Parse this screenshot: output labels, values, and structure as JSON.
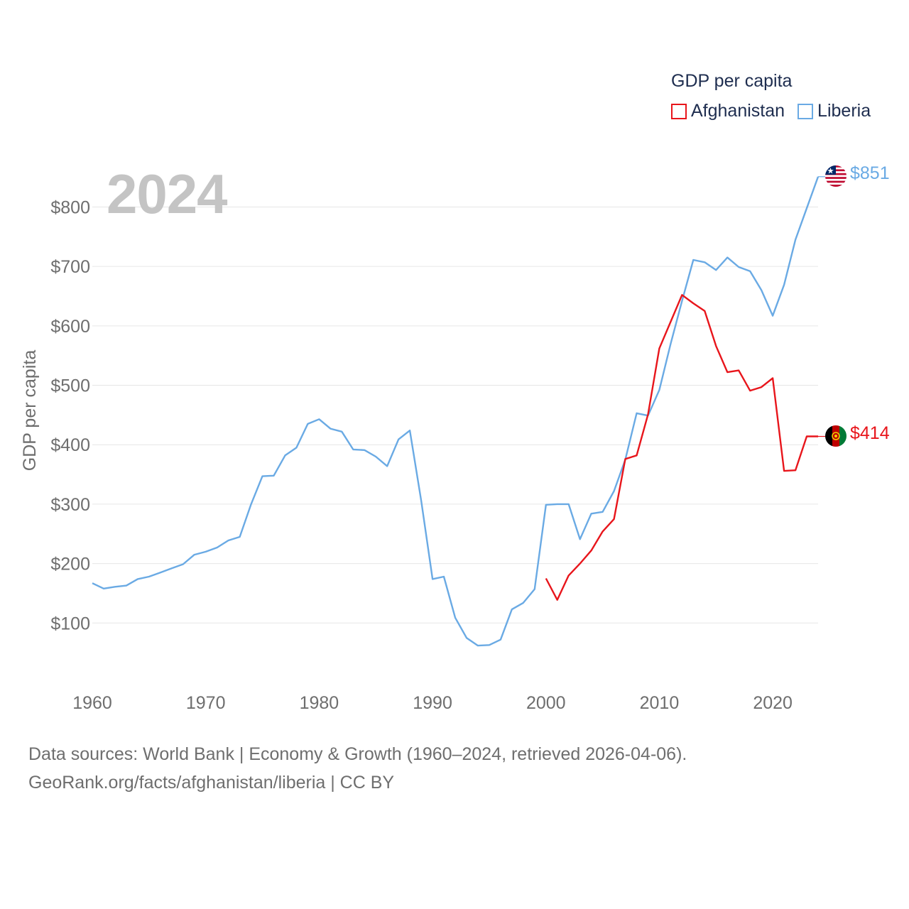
{
  "chart_data": {
    "type": "line",
    "title": "2024",
    "ylabel": "GDP per capita",
    "xlabel": "",
    "xlim": [
      1960,
      2024
    ],
    "ylim": [
      0,
      900
    ],
    "grid": true,
    "yticks": [
      100,
      200,
      300,
      400,
      500,
      600,
      700,
      800
    ],
    "ytick_labels": [
      "$100",
      "$200",
      "$300",
      "$400",
      "$500",
      "$600",
      "$700",
      "$800"
    ],
    "xticks": [
      1960,
      1970,
      1980,
      1990,
      2000,
      2010,
      2020
    ],
    "xtick_labels": [
      "1960",
      "1970",
      "1980",
      "1990",
      "2000",
      "2010",
      "2020"
    ],
    "legend_title": "GDP per capita",
    "series": [
      {
        "name": "Afghanistan",
        "color": "#e8151b",
        "end_label": "$414",
        "x": [
          2000,
          2001,
          2002,
          2003,
          2004,
          2005,
          2006,
          2007,
          2008,
          2009,
          2010,
          2011,
          2012,
          2013,
          2014,
          2015,
          2016,
          2017,
          2018,
          2019,
          2020,
          2021,
          2022,
          2023,
          2024
        ],
        "values": [
          175,
          139,
          180,
          200,
          222,
          254,
          275,
          376,
          382,
          451,
          562,
          607,
          652,
          638,
          625,
          566,
          522,
          525,
          491,
          497,
          512,
          356,
          357,
          414,
          414
        ]
      },
      {
        "name": "Liberia",
        "color": "#6aaae4",
        "end_label": "$851",
        "x": [
          1960,
          1961,
          1962,
          1963,
          1964,
          1965,
          1966,
          1967,
          1968,
          1969,
          1970,
          1971,
          1972,
          1973,
          1974,
          1975,
          1976,
          1977,
          1978,
          1979,
          1980,
          1981,
          1982,
          1983,
          1984,
          1985,
          1986,
          1987,
          1988,
          1989,
          1990,
          1991,
          1992,
          1993,
          1994,
          1995,
          1996,
          1997,
          1998,
          1999,
          2000,
          2001,
          2002,
          2003,
          2004,
          2005,
          2006,
          2007,
          2008,
          2009,
          2010,
          2011,
          2012,
          2013,
          2014,
          2015,
          2016,
          2017,
          2018,
          2019,
          2020,
          2021,
          2022,
          2023,
          2024
        ],
        "values": [
          167,
          158,
          161,
          163,
          174,
          178,
          185,
          192,
          199,
          215,
          220,
          227,
          239,
          245,
          300,
          347,
          348,
          382,
          395,
          435,
          443,
          427,
          422,
          392,
          391,
          380,
          364,
          409,
          424,
          306,
          174,
          178,
          109,
          75,
          62,
          63,
          72,
          123,
          134,
          157,
          299,
          300,
          300,
          241,
          284,
          287,
          322,
          375,
          453,
          449,
          492,
          570,
          642,
          711,
          707,
          694,
          715,
          699,
          692,
          660,
          617,
          669,
          745,
          798,
          851
        ]
      }
    ]
  },
  "footer": {
    "line1": "Data sources: World Bank | Economy & Growth (1960–2024, retrieved 2026-04-06).",
    "line2": "GeoRank.org/facts/afghanistan/liberia | CC BY"
  },
  "flags": {
    "afghanistan": "afghanistan-flag",
    "liberia": "liberia-flag"
  }
}
